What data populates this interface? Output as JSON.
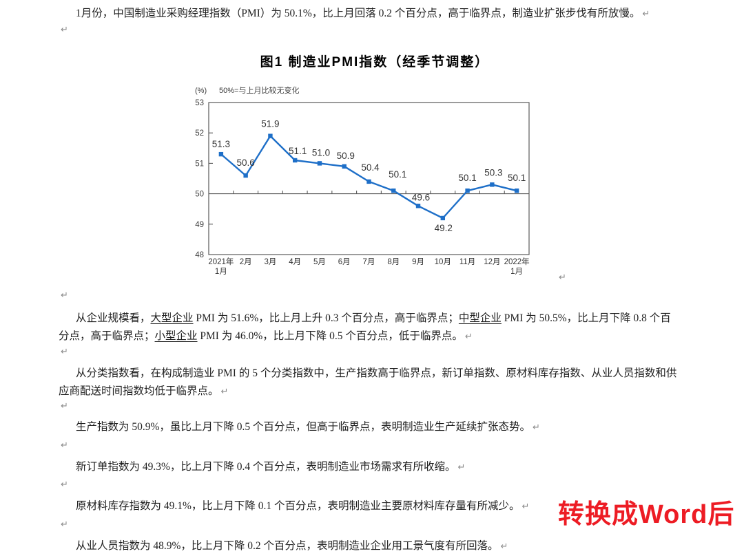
{
  "glyphs": {
    "pilcrow": "↵"
  },
  "document": {
    "p1": "1月份，中国制造业采购经理指数（PMI）为 50.1%，比上月回落 0.2 个百分点，高于临界点，制造业扩张步伐有所放慢。",
    "p2_segments": [
      {
        "text": "从企业规模看，",
        "underline": false
      },
      {
        "text": "大型企业",
        "underline": true
      },
      {
        "text": " PMI 为 51.6%，比上月上升 0.3 个百分点，高于临界点；",
        "underline": false
      },
      {
        "text": "中型企业",
        "underline": true
      },
      {
        "text": " PMI 为 50.5%，比上月下降 0.8 个百分点，高于临界点；",
        "underline": false
      },
      {
        "text": "小型企业",
        "underline": true
      },
      {
        "text": " PMI 为 46.0%，比上月下降 0.5 个百分点，低于临界点。",
        "underline": false
      }
    ],
    "p3": "从分类指数看，在构成制造业 PMI 的 5 个分类指数中，生产指数高于临界点，新订单指数、原材料库存指数、从业人员指数和供应商配送时间指数均低于临界点。",
    "p4": "生产指数为 50.9%，虽比上月下降 0.5 个百分点，但高于临界点，表明制造业生产延续扩张态势。",
    "p5": "新订单指数为 49.3%，比上月下降 0.4 个百分点，表明制造业市场需求有所收缩。",
    "p6": "原材料库存指数为 49.1%，比上月下降 0.1 个百分点，表明制造业主要原材料库存量有所减少。",
    "p7": "从业人员指数为 48.9%，比上月下降 0.2 个百分点，表明制造业企业用工景气度有所回落。"
  },
  "watermark": {
    "text": "转换成Word后",
    "color": "#ed1c24"
  },
  "chart_data": {
    "type": "line",
    "title": "图1 制造业PMI指数（经季节调整）",
    "unit_label": "(%)",
    "note": "50%=与上月比较无变化",
    "categories": [
      "2021年\n1月",
      "2月",
      "3月",
      "4月",
      "5月",
      "6月",
      "7月",
      "8月",
      "9月",
      "10月",
      "11月",
      "12月",
      "2022年\n1月"
    ],
    "series": [
      {
        "name": "制造业PMI",
        "values": [
          51.3,
          50.6,
          51.9,
          51.1,
          51.0,
          50.9,
          50.4,
          50.1,
          49.6,
          49.2,
          50.1,
          50.3,
          50.1
        ]
      }
    ],
    "ylim": [
      48,
      53
    ],
    "y_ticks": [
      53,
      52,
      51,
      50,
      49,
      48
    ],
    "reference_line": 50,
    "data_labels": true,
    "grid": false,
    "legend": "none",
    "marker": "square",
    "line_color": "#1e6fc8",
    "axis_color": "#595959",
    "label_color": "#333333",
    "tick_label_color": "#404040"
  }
}
